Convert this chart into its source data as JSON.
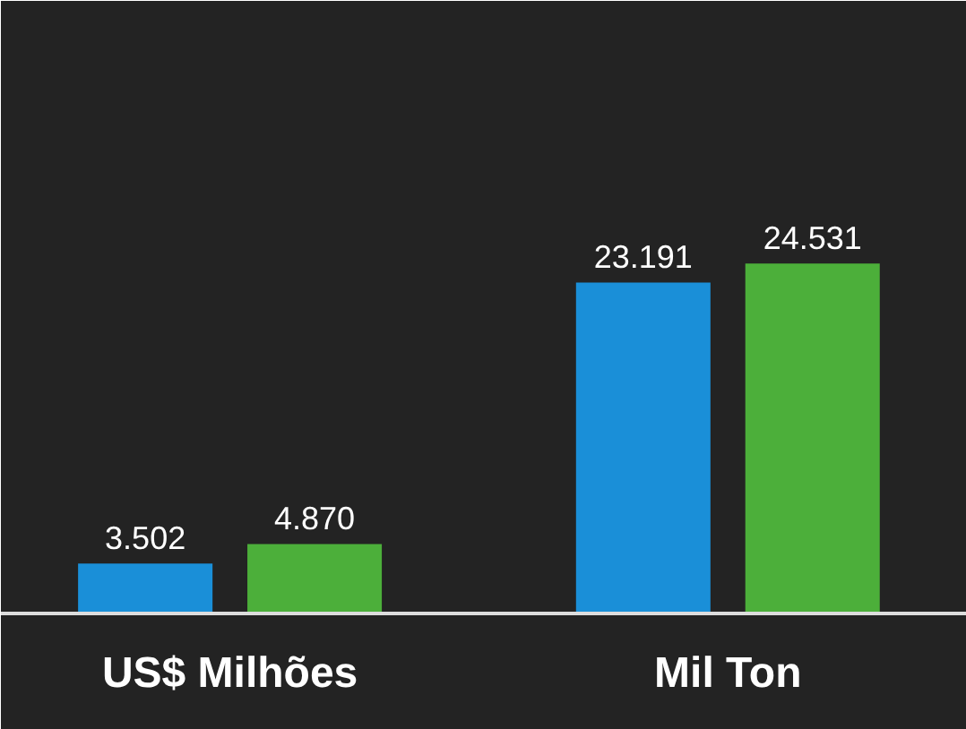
{
  "chart_data": {
    "type": "bar",
    "categories": [
      "US$ Milhões",
      "Mil Ton"
    ],
    "series": [
      {
        "color": "#1a8fd8",
        "values": [
          3502,
          23191
        ],
        "value_labels": [
          "3.502",
          "23.191"
        ]
      },
      {
        "color": "#4caf3a",
        "values": [
          4870,
          24531
        ],
        "value_labels": [
          "4.870",
          "24.531"
        ]
      }
    ]
  }
}
